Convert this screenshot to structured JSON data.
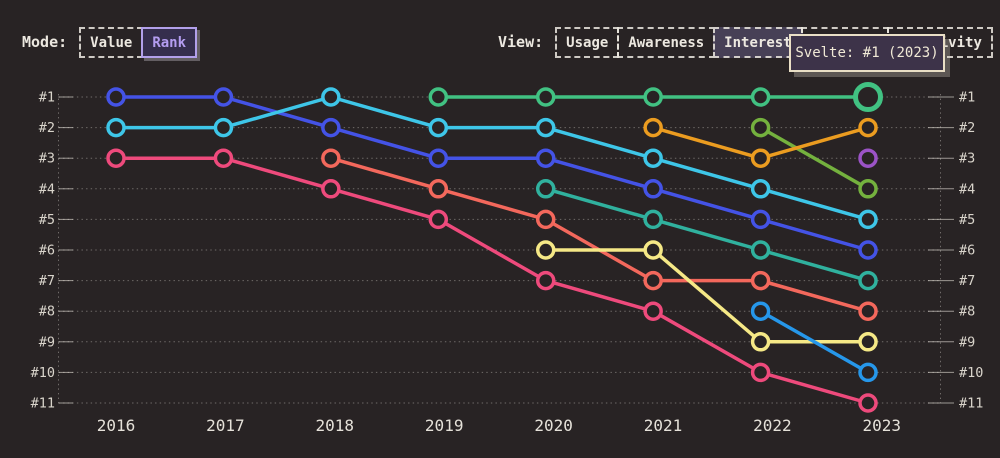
{
  "mode_bar": {
    "label": "Mode:",
    "options": [
      {
        "label": "Value",
        "selected": false
      },
      {
        "label": "Rank",
        "selected": true
      }
    ]
  },
  "view_bar": {
    "label": "View:",
    "options": [
      {
        "label": "Usage",
        "selected": false
      },
      {
        "label": "Awareness",
        "selected": false
      },
      {
        "label": "Interest",
        "selected": true
      },
      {
        "label": "",
        "selected": false
      },
      {
        "label": "Positivity",
        "selected": false
      }
    ]
  },
  "tooltip": {
    "text": "Svelte: #1 (2023)"
  },
  "colors": {
    "background": "#282324",
    "text": "#ece8e0",
    "axis_text": "#d9d4cb",
    "year_text": "#e5e1d9",
    "grid": "rgba(235,230,222,0.38)",
    "tick": "rgba(235,230,222,0.6)",
    "view_selected_bg": "#474056",
    "rank_selected_text": "#b49df0",
    "rank_selected_border": "#b2a0ea",
    "rank_selected_bg": "#352e4d",
    "tooltip_bg": "#3d3349",
    "tooltip_border": "#eadfc6"
  },
  "chart_data": {
    "type": "line",
    "subtype": "bump-rank",
    "x": [
      2016,
      2017,
      2018,
      2019,
      2020,
      2021,
      2022,
      2023
    ],
    "rank_labels": [
      "#1",
      "#2",
      "#3",
      "#4",
      "#5",
      "#6",
      "#7",
      "#8",
      "#9",
      "#10",
      "#11"
    ],
    "ylim": [
      1,
      11
    ],
    "grid": "dotted-horizontal",
    "legend": "none",
    "series": [
      {
        "name": "pink",
        "color": "#ee4a7c",
        "ranks": [
          3,
          3,
          4,
          5,
          7,
          8,
          10,
          11
        ]
      },
      {
        "name": "salmon",
        "color": "#f3685c",
        "ranks": [
          null,
          null,
          3,
          4,
          5,
          7,
          7,
          8
        ]
      },
      {
        "name": "blue",
        "color": "#4453e6",
        "ranks": [
          1,
          1,
          2,
          3,
          3,
          4,
          5,
          6
        ]
      },
      {
        "name": "cyan",
        "color": "#3ec6e8",
        "ranks": [
          2,
          2,
          1,
          2,
          2,
          3,
          4,
          5
        ]
      },
      {
        "name": "teal",
        "color": "#30b19e",
        "ranks": [
          null,
          null,
          null,
          null,
          4,
          5,
          6,
          7
        ]
      },
      {
        "name": "yellow",
        "color": "#f5e886",
        "ranks": [
          null,
          null,
          null,
          null,
          6,
          6,
          9,
          9
        ]
      },
      {
        "name": "sky-blue",
        "color": "#2697ea",
        "ranks": [
          null,
          null,
          null,
          null,
          null,
          null,
          8,
          10
        ]
      },
      {
        "name": "olive-green",
        "color": "#74b13e",
        "ranks": [
          null,
          null,
          null,
          null,
          null,
          null,
          2,
          4
        ]
      },
      {
        "name": "orange",
        "color": "#eb9c20",
        "ranks": [
          null,
          null,
          null,
          null,
          null,
          2,
          3,
          2
        ]
      },
      {
        "name": "purple",
        "color": "#9b53c6",
        "ranks": [
          null,
          null,
          null,
          null,
          null,
          null,
          null,
          3
        ]
      },
      {
        "name": "svelte-green",
        "color": "#41c182",
        "ranks": [
          null,
          null,
          null,
          1,
          1,
          1,
          1,
          1
        ],
        "highlight": {
          "year": 2023,
          "rank": 1
        }
      }
    ]
  }
}
